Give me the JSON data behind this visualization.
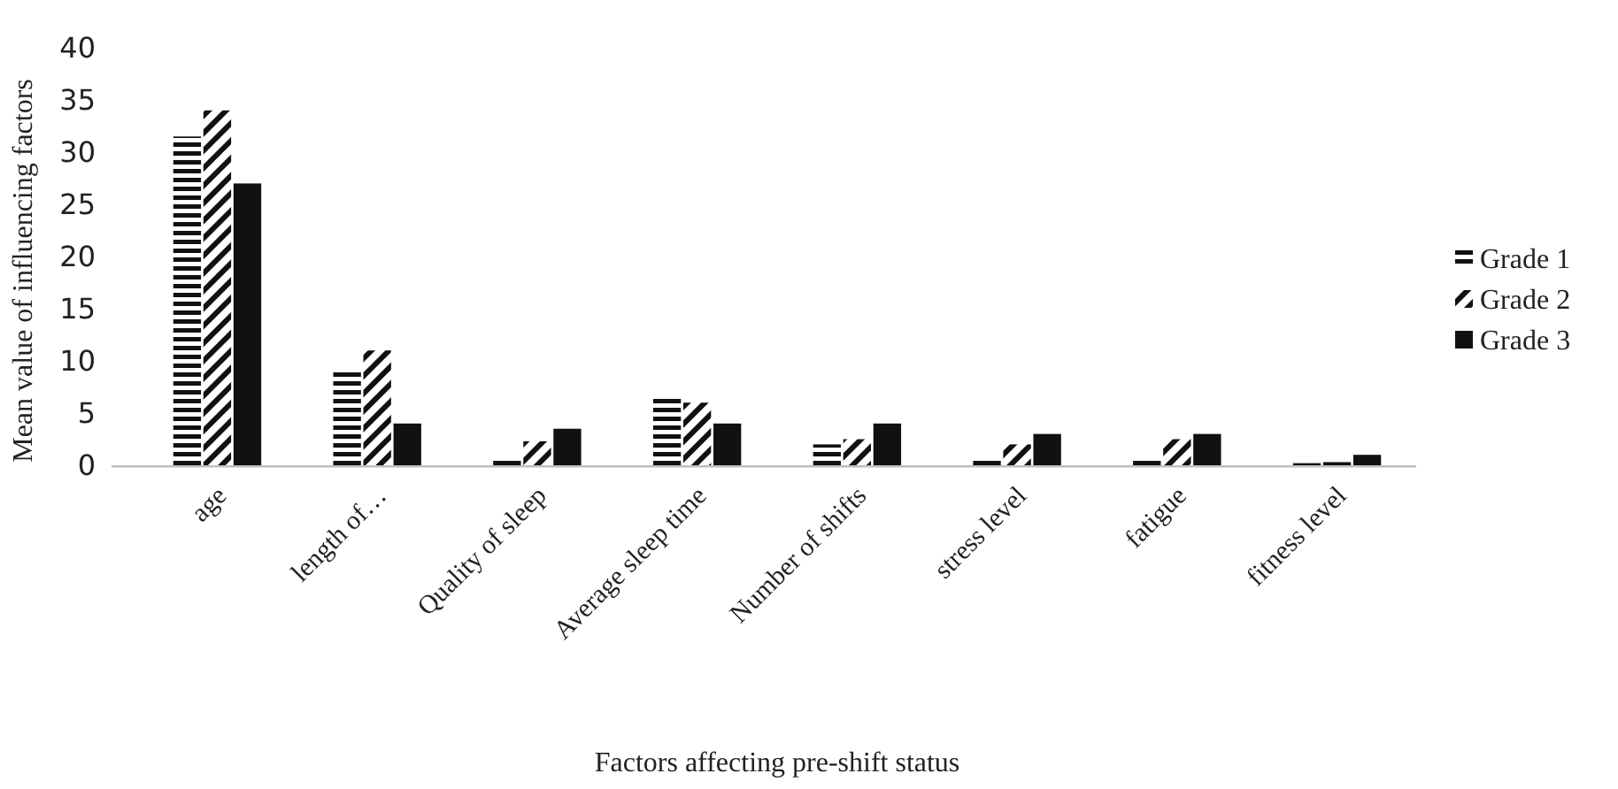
{
  "chart_data": {
    "type": "bar",
    "xlabel": "Factors affecting pre-shift status",
    "ylabel": "Mean value of influencing factors",
    "categories": [
      "age",
      "length of…",
      "Quality of sleep",
      "Average sleep time",
      "Number of shifts",
      "stress level",
      "fatigue",
      "fitness level"
    ],
    "series": [
      {
        "name": "Grade 1",
        "color": "#111111",
        "values": [
          31.5,
          9,
          0.7,
          6.5,
          2,
          0.7,
          0.7,
          0.2
        ]
      },
      {
        "name": "Grade 2",
        "color": "#111111",
        "values": [
          34,
          11,
          2.3,
          6,
          2.5,
          2,
          2.5,
          0.3
        ]
      },
      {
        "name": "Grade 3",
        "color": "#111111",
        "values": [
          27,
          4,
          3.5,
          4,
          4,
          3,
          3,
          1
        ]
      }
    ],
    "ylim": [
      0,
      40
    ],
    "yticks": [
      0,
      5,
      10,
      15,
      20,
      25,
      30,
      35,
      40
    ],
    "grid": false,
    "legend": "right"
  }
}
